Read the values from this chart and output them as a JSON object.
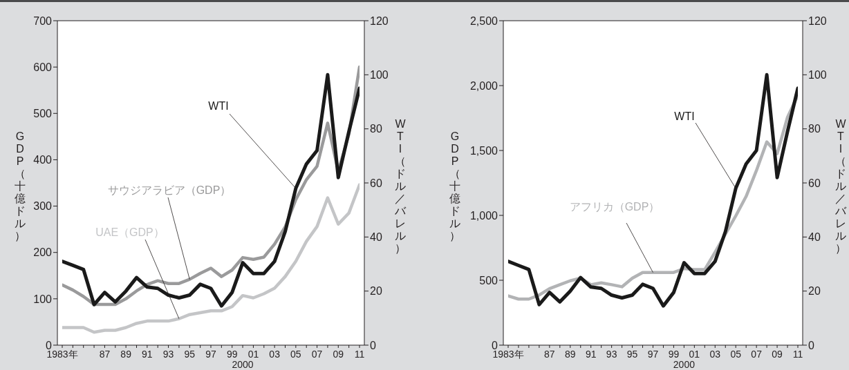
{
  "chart_data": [
    {
      "type": "line",
      "categories": [
        "1983年",
        null,
        null,
        null,
        "87",
        null,
        "89",
        null,
        "91",
        null,
        "93",
        null,
        "95",
        null,
        "97",
        null,
        "99",
        "2000",
        "01",
        null,
        "03",
        null,
        "05",
        null,
        "07",
        null,
        "09",
        null,
        "11"
      ],
      "ylabel": "GDP（十億ドル）",
      "y2label": "WTI（ドル／バレル）",
      "ylim": [
        0,
        700
      ],
      "yticks": [
        0,
        100,
        200,
        300,
        400,
        500,
        600,
        700
      ],
      "y2lim": [
        0,
        120
      ],
      "y2ticks": [
        0,
        20,
        40,
        60,
        80,
        100,
        120
      ],
      "series": [
        {
          "name": "UAE（GDP）",
          "color": "#c4c5c7",
          "values": [
            38,
            38,
            38,
            28,
            32,
            32,
            38,
            47,
            52,
            52,
            52,
            57,
            66,
            70,
            74,
            74,
            83,
            107,
            102,
            111,
            123,
            148,
            181,
            224,
            256,
            318,
            261,
            285,
            346
          ]
        },
        {
          "name": "サウジアラビア（GDP）",
          "color": "#9a9a9b",
          "values": [
            130,
            119,
            105,
            88,
            88,
            88,
            100,
            117,
            131,
            139,
            133,
            133,
            142,
            155,
            166,
            148,
            162,
            189,
            185,
            190,
            218,
            255,
            314,
            357,
            386,
            479,
            375,
            455,
            600
          ]
        },
        {
          "name": "WTI",
          "color": "#1a1a1a",
          "axis": "y2",
          "values": [
            31,
            29.5,
            28,
            15,
            19.5,
            16,
            20,
            25,
            21.5,
            21,
            18.5,
            17.5,
            18.5,
            22.5,
            21,
            14.5,
            19.5,
            30.5,
            26.5,
            26.5,
            31,
            42,
            58,
            67,
            72,
            100,
            62,
            79,
            95
          ]
        }
      ]
    },
    {
      "type": "line",
      "categories": [
        "1983年",
        null,
        null,
        null,
        "87",
        null,
        "89",
        null,
        "91",
        null,
        "93",
        null,
        "95",
        null,
        "97",
        null,
        "99",
        "2000",
        "01",
        null,
        "03",
        null,
        "05",
        null,
        "07",
        null,
        "09",
        null,
        "11"
      ],
      "ylabel": "GDP（十億ドル）",
      "y2label": "WTI（ドル／バレル）",
      "ylim": [
        0,
        2500
      ],
      "yticks": [
        0,
        500,
        {
          "value": 1000,
          "label": "1,000"
        },
        {
          "value": 1500,
          "label": "1,500"
        },
        {
          "value": 2000,
          "label": "2,000"
        },
        {
          "value": 2500,
          "label": "2,500"
        }
      ],
      "y2lim": [
        0,
        120
      ],
      "y2ticks": [
        0,
        20,
        40,
        60,
        80,
        100,
        120
      ],
      "series": [
        {
          "name": "アフリカ（GDP）",
          "color": "#b2b3b5",
          "values": [
            380,
            355,
            355,
            386,
            436,
            466,
            496,
            516,
            466,
            480,
            466,
            450,
            516,
            560,
            560,
            560,
            560,
            590,
            582,
            582,
            716,
            856,
            996,
            1146,
            1346,
            1566,
            1476,
            1756,
            1926
          ]
        },
        {
          "name": "WTI",
          "color": "#1a1a1a",
          "axis": "y2",
          "values": [
            31,
            29.5,
            28,
            15,
            19.5,
            16,
            20,
            25,
            21.5,
            21,
            18.5,
            17.5,
            18.5,
            22.5,
            21,
            14.5,
            19.5,
            30.5,
            26.5,
            26.5,
            31,
            42,
            58,
            67,
            72,
            100,
            62,
            79,
            95
          ]
        }
      ]
    }
  ]
}
